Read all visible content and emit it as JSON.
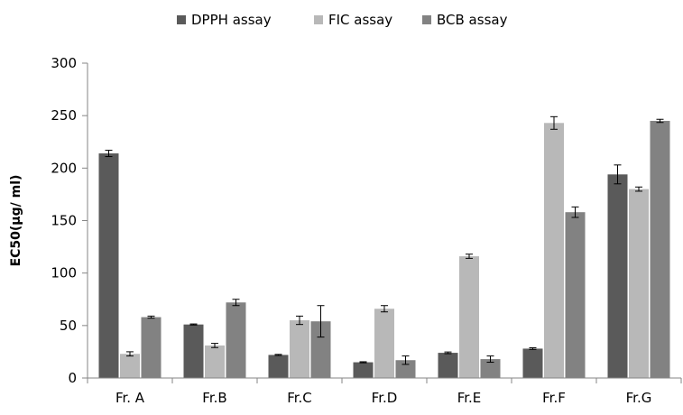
{
  "chart_data": {
    "type": "bar",
    "title": "",
    "xlabel": "",
    "ylabel": "EC50(µg/ ml)",
    "ylim": [
      0,
      300
    ],
    "yticks": [
      0,
      50,
      100,
      150,
      200,
      250,
      300
    ],
    "grid": false,
    "legend_position": "top",
    "categories": [
      "Fr. A",
      "Fr.B",
      "Fr.C",
      "Fr.D",
      "Fr.E",
      "Fr.F",
      "Fr.G"
    ],
    "series": [
      {
        "name": "DPPH assay",
        "color": "#5a5a5a",
        "values": [
          214,
          51,
          22,
          15,
          24,
          28,
          194
        ],
        "errors": [
          3,
          0.5,
          0.5,
          0.5,
          0.8,
          0.8,
          9
        ]
      },
      {
        "name": "FIC assay",
        "color": "#b8b8b8",
        "values": [
          23,
          31,
          55,
          66,
          116,
          243,
          180
        ],
        "errors": [
          2,
          2,
          4,
          3,
          2,
          6,
          2
        ]
      },
      {
        "name": "BCB assay",
        "color": "#828282",
        "values": [
          58,
          72,
          54,
          17,
          18,
          158,
          245
        ],
        "errors": [
          1,
          3,
          15,
          4,
          3,
          5,
          1.5
        ]
      }
    ]
  }
}
